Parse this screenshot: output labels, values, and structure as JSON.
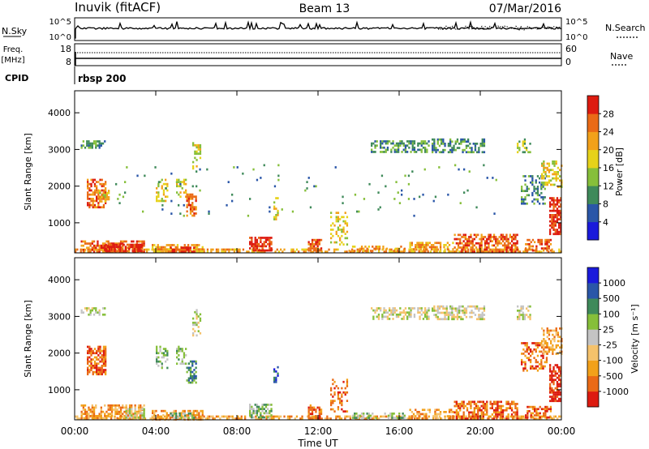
{
  "header": {
    "station": "Inuvik (fitACF)",
    "beam": "Beam 13",
    "date": "07/Mar/2016"
  },
  "sky_panel": {
    "label": "N.Sky",
    "left_ticks": [
      "10^5",
      "10^0"
    ],
    "right_ticks": [
      "10^5",
      "10^0"
    ],
    "right_label": "N.Search"
  },
  "freq_panel": {
    "label_line1": "Freq.",
    "label_line2": "[MHz]",
    "left_ticks": [
      "18",
      "8"
    ],
    "right_ticks": [
      "60",
      "0"
    ],
    "right_label": "Nave"
  },
  "cpid": {
    "label": "CPID",
    "value": "rbsp 200"
  },
  "colors": {
    "power": [
      "#1a1adb",
      "#2a56a8",
      "#3f8a5a",
      "#86bf3a",
      "#e6d21a",
      "#f2a11a",
      "#ea6a16",
      "#dd1b10"
    ],
    "velocity": [
      "#dd1b10",
      "#ea6a16",
      "#f2a11a",
      "#f5c26b",
      "#c4c4c4",
      "#86bf3a",
      "#3f8a5a",
      "#2a56a8",
      "#1a1adb"
    ]
  },
  "chart_data": [
    {
      "type": "heatmap",
      "panel": "power",
      "ylabel": "Slant Range [km]",
      "ylim": [
        180,
        4600
      ],
      "yticks": [
        "1000",
        "2000",
        "3000",
        "4000"
      ],
      "colorbar": {
        "label": "Power [dB]",
        "ticks": [
          "4",
          "8",
          "12",
          "16",
          "20",
          "24",
          "28"
        ]
      },
      "blobs": [
        {
          "t": [
            0.0,
            24.0
          ],
          "r": [
            200,
            300
          ],
          "level": 5,
          "density": 0.55
        },
        {
          "t": [
            0.3,
            3.4
          ],
          "r": [
            220,
            520
          ],
          "level": 6,
          "density": 0.6
        },
        {
          "t": [
            1.5,
            3.3
          ],
          "r": [
            220,
            430
          ],
          "level": 7,
          "density": 0.75
        },
        {
          "t": [
            3.8,
            6.3
          ],
          "r": [
            220,
            420
          ],
          "level": 5,
          "density": 0.6
        },
        {
          "t": [
            4.7,
            5.9
          ],
          "r": [
            220,
            350
          ],
          "level": 7,
          "density": 0.8
        },
        {
          "t": [
            8.6,
            9.7
          ],
          "r": [
            220,
            620
          ],
          "level": 7,
          "density": 0.75
        },
        {
          "t": [
            11.5,
            12.2
          ],
          "r": [
            220,
            560
          ],
          "level": 6,
          "density": 0.7
        },
        {
          "t": [
            12.6,
            13.4
          ],
          "r": [
            400,
            1300
          ],
          "level": 4,
          "density": 0.35
        },
        {
          "t": [
            13.5,
            16.3
          ],
          "r": [
            220,
            380
          ],
          "level": 5,
          "density": 0.45
        },
        {
          "t": [
            16.5,
            18.7
          ],
          "r": [
            220,
            480
          ],
          "level": 5,
          "density": 0.55
        },
        {
          "t": [
            18.7,
            21.8
          ],
          "r": [
            220,
            700
          ],
          "level": 6,
          "density": 0.65
        },
        {
          "t": [
            22.2,
            23.5
          ],
          "r": [
            220,
            560
          ],
          "level": 6,
          "density": 0.6
        },
        {
          "t": [
            23.4,
            24.0
          ],
          "r": [
            700,
            1700
          ],
          "level": 7,
          "density": 0.75
        },
        {
          "t": [
            0.6,
            1.5
          ],
          "r": [
            1450,
            2200
          ],
          "level": 6,
          "density": 0.6
        },
        {
          "t": [
            1.2,
            1.7
          ],
          "r": [
            1600,
            1900
          ],
          "level": 4,
          "density": 0.55
        },
        {
          "t": [
            4.0,
            4.6
          ],
          "r": [
            1600,
            2200
          ],
          "level": 4,
          "density": 0.45
        },
        {
          "t": [
            5.0,
            5.5
          ],
          "r": [
            1700,
            2200
          ],
          "level": 4,
          "density": 0.45
        },
        {
          "t": [
            5.5,
            6.0
          ],
          "r": [
            1200,
            1800
          ],
          "level": 6,
          "density": 0.6
        },
        {
          "t": [
            5.8,
            6.2
          ],
          "r": [
            2500,
            3200
          ],
          "level": 4,
          "density": 0.4
        },
        {
          "t": [
            9.8,
            10.0
          ],
          "r": [
            1100,
            1700
          ],
          "level": 4,
          "density": 0.55
        },
        {
          "t": [
            0.3,
            1.5
          ],
          "r": [
            3050,
            3250
          ],
          "level": 2,
          "density": 0.45
        },
        {
          "t": [
            14.6,
            17.5
          ],
          "r": [
            2950,
            3250
          ],
          "level": 2,
          "density": 0.5
        },
        {
          "t": [
            17.6,
            20.2
          ],
          "r": [
            2900,
            3300
          ],
          "level": 2,
          "density": 0.5
        },
        {
          "t": [
            21.8,
            22.5
          ],
          "r": [
            2900,
            3300
          ],
          "level": 3,
          "density": 0.4
        },
        {
          "t": [
            22.0,
            23.3
          ],
          "r": [
            1500,
            2300
          ],
          "level": 2,
          "density": 0.4
        },
        {
          "t": [
            23.0,
            24.0
          ],
          "r": [
            2000,
            2700
          ],
          "level": 4,
          "density": 0.4
        },
        {
          "t": [
            2.0,
            21.0
          ],
          "r": [
            1200,
            2600
          ],
          "level": 2,
          "density": 0.02
        }
      ]
    },
    {
      "type": "heatmap",
      "panel": "velocity",
      "xlabel": "Time UT",
      "xticks": [
        "00:00",
        "04:00",
        "08:00",
        "12:00",
        "16:00",
        "20:00",
        "00:00"
      ],
      "xlim": [
        0,
        24
      ],
      "ylabel": "Slant Range [km]",
      "ylim": [
        180,
        4600
      ],
      "yticks": [
        "1000",
        "2000",
        "3000",
        "4000"
      ],
      "colorbar": {
        "label": "Velocity [m s⁻¹]",
        "ticks": [
          "1000",
          "500",
          "100",
          "25",
          "-25",
          "-100",
          "-500",
          "-1000"
        ]
      },
      "blobs": [
        {
          "t": [
            0.0,
            24.0
          ],
          "r": [
            200,
            300
          ],
          "level": 2,
          "density": 0.55
        },
        {
          "t": [
            0.3,
            3.4
          ],
          "r": [
            220,
            600
          ],
          "level": 2,
          "density": 0.6
        },
        {
          "t": [
            2.5,
            3.4
          ],
          "r": [
            220,
            500
          ],
          "level": 4,
          "density": 0.6
        },
        {
          "t": [
            3.8,
            6.3
          ],
          "r": [
            220,
            450
          ],
          "level": 2,
          "density": 0.55
        },
        {
          "t": [
            4.7,
            5.9
          ],
          "r": [
            220,
            380
          ],
          "level": 5,
          "density": 0.5
        },
        {
          "t": [
            8.6,
            9.7
          ],
          "r": [
            220,
            620
          ],
          "level": 5,
          "density": 0.6
        },
        {
          "t": [
            11.5,
            12.2
          ],
          "r": [
            220,
            600
          ],
          "level": 1,
          "density": 0.65
        },
        {
          "t": [
            12.6,
            13.4
          ],
          "r": [
            400,
            1300
          ],
          "level": 1,
          "density": 0.35
        },
        {
          "t": [
            13.5,
            16.3
          ],
          "r": [
            220,
            380
          ],
          "level": 5,
          "density": 0.45
        },
        {
          "t": [
            16.5,
            18.7
          ],
          "r": [
            220,
            480
          ],
          "level": 2,
          "density": 0.55
        },
        {
          "t": [
            18.7,
            21.8
          ],
          "r": [
            220,
            700
          ],
          "level": 1,
          "density": 0.65
        },
        {
          "t": [
            22.2,
            23.5
          ],
          "r": [
            220,
            560
          ],
          "level": 1,
          "density": 0.6
        },
        {
          "t": [
            23.4,
            24.0
          ],
          "r": [
            700,
            1700
          ],
          "level": 0,
          "density": 0.75
        },
        {
          "t": [
            0.6,
            1.5
          ],
          "r": [
            1450,
            2200
          ],
          "level": 1,
          "density": 0.7
        },
        {
          "t": [
            4.0,
            4.6
          ],
          "r": [
            1600,
            2200
          ],
          "level": 5,
          "density": 0.45
        },
        {
          "t": [
            5.0,
            5.5
          ],
          "r": [
            1700,
            2200
          ],
          "level": 5,
          "density": 0.45
        },
        {
          "t": [
            5.5,
            6.0
          ],
          "r": [
            1200,
            1800
          ],
          "level": 6,
          "density": 0.55
        },
        {
          "t": [
            5.8,
            6.2
          ],
          "r": [
            2500,
            3200
          ],
          "level": 4,
          "density": 0.4
        },
        {
          "t": [
            9.8,
            10.0
          ],
          "r": [
            1100,
            1700
          ],
          "level": 7,
          "density": 0.55
        },
        {
          "t": [
            0.3,
            1.5
          ],
          "r": [
            3050,
            3250
          ],
          "level": 4,
          "density": 0.5
        },
        {
          "t": [
            14.6,
            17.5
          ],
          "r": [
            2950,
            3250
          ],
          "level": 4,
          "density": 0.55
        },
        {
          "t": [
            17.6,
            20.2
          ],
          "r": [
            2900,
            3300
          ],
          "level": 4,
          "density": 0.55
        },
        {
          "t": [
            21.8,
            22.5
          ],
          "r": [
            2900,
            3300
          ],
          "level": 4,
          "density": 0.5
        },
        {
          "t": [
            22.0,
            23.3
          ],
          "r": [
            1500,
            2300
          ],
          "level": 1,
          "density": 0.45
        },
        {
          "t": [
            23.0,
            24.0
          ],
          "r": [
            2000,
            2700
          ],
          "level": 2,
          "density": 0.4
        }
      ]
    }
  ]
}
